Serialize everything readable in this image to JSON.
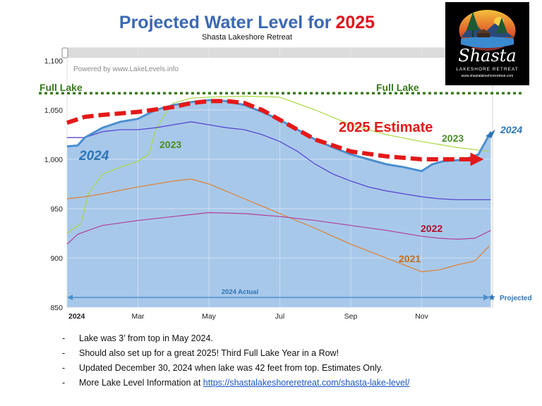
{
  "header": {
    "title_main": "Projected Water Level for",
    "title_year": "2025",
    "subtitle": "Shasta Lakeshore Retreat"
  },
  "logo": {
    "name": "Shasta",
    "tagline": "LAKESHORE RETREAT",
    "url": "www.shastalakeshoreretreat.com"
  },
  "notes": [
    {
      "text": "Lake was 3’ from top in May 2024."
    },
    {
      "text": "Should also set up for a great 2025!  Third Full Lake Year in a Row!"
    },
    {
      "text": "Updated December 30, 2024 when lake was 42 feet from top.  Estimates Only."
    },
    {
      "text": "More Lake Level Information at ",
      "link": "https://shastalakeshoreretreat.com/shasta-lake-level/"
    }
  ],
  "colors": {
    "fill_2024": "#a8c8ea",
    "line_2024": "#4a8fcf",
    "line_2023": "#a8d840",
    "line_2022": "#b0409a",
    "line_2021": "#e08030",
    "line_mid": "#5848d0",
    "estimate": "#e41818",
    "full_lake": "#3a7a1e",
    "label_2024": "#2e75b6",
    "label_2023": "#4a8a2a",
    "label_2022": "#b01030",
    "label_2021": "#c06d20",
    "plot_bg": "#dcdcdc"
  },
  "chart_data": {
    "type": "line",
    "watermark": "Powered by www.LakeLevels.info",
    "y_ticks": [
      "850",
      "900",
      "950",
      "1,000",
      "1,050",
      "1,100"
    ],
    "ylim": [
      850,
      1100
    ],
    "x_ticks": [
      {
        "label": "2024",
        "month": 0,
        "bold": true
      },
      {
        "label": "Mar",
        "month": 2,
        "bold": false
      },
      {
        "label": "May",
        "month": 4,
        "bold": false
      },
      {
        "label": "Jul",
        "month": 6,
        "bold": false
      },
      {
        "label": "Sep",
        "month": 8,
        "bold": false
      },
      {
        "label": "Nov",
        "month": 10,
        "bold": false
      }
    ],
    "xlim": [
      0,
      12
    ],
    "full_lake": {
      "value": 1067,
      "label_left": "Full Lake",
      "label_right": "Full Lake"
    },
    "series": [
      {
        "name": "2024",
        "role": "area",
        "x": [
          0,
          0.3,
          0.5,
          1,
          1.5,
          2,
          2.5,
          3,
          3.5,
          4,
          4.5,
          5,
          5.5,
          6,
          6.5,
          7,
          7.5,
          8,
          8.5,
          9,
          9.5,
          10,
          10.3,
          10.6,
          11,
          11.3,
          11.6,
          11.8,
          11.95
        ],
        "y": [
          1013,
          1014,
          1022,
          1032,
          1038,
          1041,
          1050,
          1055,
          1058,
          1060,
          1059,
          1055,
          1048,
          1040,
          1030,
          1020,
          1012,
          1005,
          1000,
          995,
          992,
          988,
          995,
          998,
          999,
          1001,
          1005,
          1018,
          1028
        ]
      },
      {
        "name": "2023",
        "role": "line",
        "x": [
          0,
          0.4,
          0.6,
          1,
          1.5,
          2,
          2.3,
          2.5,
          2.8,
          3,
          3.5,
          4,
          5,
          6,
          7,
          8,
          9,
          10,
          11,
          11.9
        ],
        "y": [
          925,
          935,
          965,
          985,
          992,
          998,
          1005,
          1030,
          1048,
          1057,
          1062,
          1063,
          1064,
          1063,
          1050,
          1035,
          1025,
          1018,
          1012,
          1008
        ]
      },
      {
        "role": "line",
        "x": [
          0,
          0.5,
          1,
          1.5,
          2,
          2.5,
          3,
          3.5,
          4,
          4.5,
          5,
          5.5,
          6,
          6.5,
          7,
          7.5,
          8,
          8.5,
          9,
          9.5,
          10,
          10.5,
          11,
          11.5,
          11.95
        ],
        "y": [
          1022,
          1022,
          1028,
          1030,
          1030,
          1032,
          1035,
          1038,
          1035,
          1032,
          1030,
          1025,
          1018,
          1008,
          995,
          985,
          978,
          972,
          968,
          965,
          962,
          960,
          959,
          959,
          959
        ]
      },
      {
        "role": "line",
        "x": [
          0,
          0.5,
          1,
          2,
          3,
          3.5,
          4,
          5,
          6,
          7,
          8,
          9,
          9.5,
          10,
          10.5,
          11,
          11.5,
          11.9
        ],
        "y": [
          960,
          962,
          965,
          972,
          978,
          980,
          975,
          960,
          945,
          930,
          914,
          900,
          893,
          886,
          888,
          893,
          897,
          912
        ]
      },
      {
        "name": "2022",
        "role": "line",
        "x": [
          0,
          0.3,
          0.6,
          1,
          2,
          3,
          4,
          5,
          6,
          7,
          8,
          9,
          10,
          10.5,
          11,
          11.5,
          11.95
        ],
        "y": [
          914,
          924,
          928,
          933,
          938,
          942,
          946,
          945,
          942,
          938,
          933,
          928,
          922,
          920,
          919,
          920,
          928
        ]
      },
      {
        "name": "2025 Estimate",
        "role": "estimate",
        "x": [
          0,
          0.5,
          1,
          2,
          3,
          3.5,
          4,
          4.5,
          5,
          5.5,
          6,
          7,
          8,
          9,
          10,
          11,
          11.6
        ],
        "y": [
          1037,
          1043,
          1045,
          1048,
          1053,
          1057,
          1059,
          1059,
          1057,
          1050,
          1040,
          1020,
          1008,
          1003,
          1000,
          1000,
          1000
        ]
      }
    ],
    "labels": {
      "big_2024": "2024",
      "label_2023_left": "2023",
      "label_2023_right": "2023",
      "label_2022": "2022",
      "label_2021": "2021",
      "label_2024_right": "2024",
      "estimate": "2025 Estimate"
    },
    "actual_arrow": {
      "label": "2024 Actual",
      "projected_label": "Projected",
      "y": 860
    }
  }
}
